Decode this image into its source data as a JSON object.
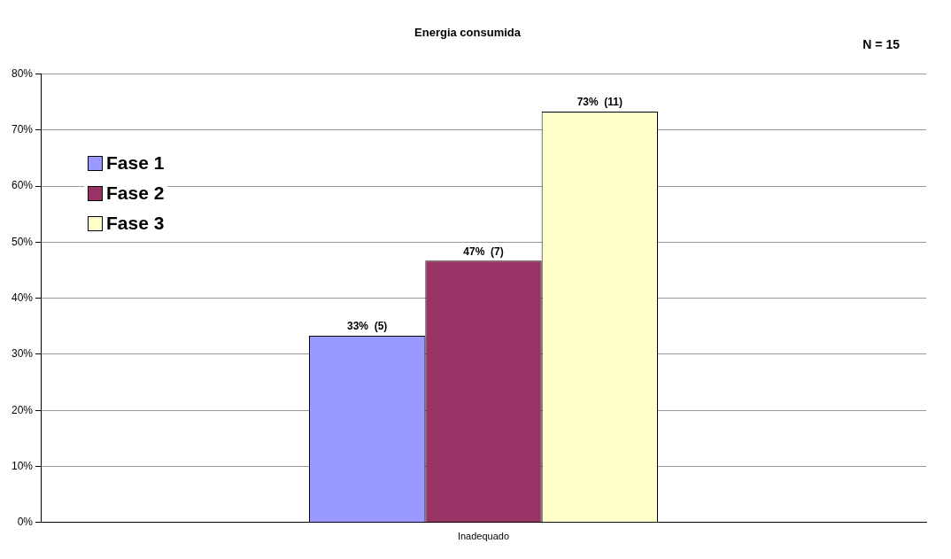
{
  "chart_data": {
    "type": "bar",
    "title": "Energia consumida",
    "categories": [
      "Inadequado"
    ],
    "series": [
      {
        "name": "Fase 1",
        "color": "#9999ff",
        "values": [
          33.3
        ],
        "value_labels": [
          "33%  (5)"
        ]
      },
      {
        "name": "Fase 2",
        "color": "#993366",
        "values": [
          46.7
        ],
        "value_labels": [
          "47%  (7)"
        ]
      },
      {
        "name": "Fase 3",
        "color": "#ffffcc",
        "values": [
          73.3
        ],
        "value_labels": [
          "73%  (11)"
        ]
      }
    ],
    "ylim": [
      0,
      80
    ],
    "yticks": [
      {
        "value": 0,
        "label": "0%"
      },
      {
        "value": 10,
        "label": "10%"
      },
      {
        "value": 20,
        "label": "20%"
      },
      {
        "value": 30,
        "label": "30%"
      },
      {
        "value": 40,
        "label": "40%"
      },
      {
        "value": 50,
        "label": "50%"
      },
      {
        "value": 60,
        "label": "60%"
      },
      {
        "value": 70,
        "label": "70%"
      },
      {
        "value": 80,
        "label": "80%"
      }
    ],
    "grid": "y",
    "legend": "left",
    "annotations": [
      "N = 15"
    ]
  }
}
